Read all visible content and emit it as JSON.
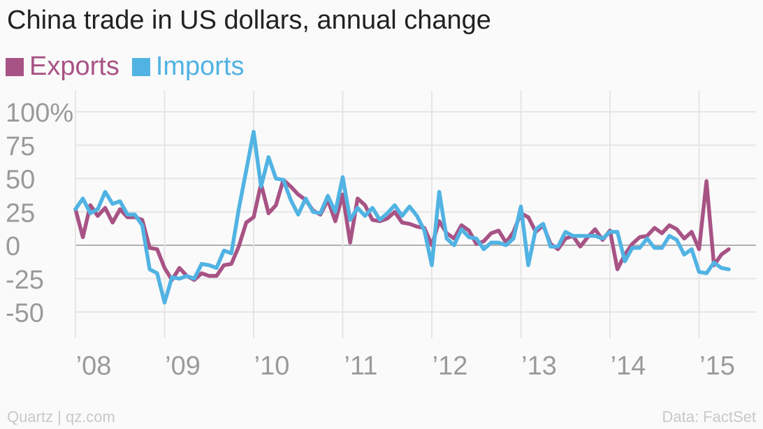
{
  "title": "China trade in US dollars, annual change",
  "footer": {
    "left": "Quartz | qz.com",
    "right": "Data: FactSet"
  },
  "colors": {
    "exports": "#a85385",
    "imports": "#51b3e3",
    "grid": "#e5e5e5",
    "zero": "#999999",
    "tick": "#9a9a9a"
  },
  "chart_data": {
    "type": "line",
    "title": "China trade in US dollars, annual change",
    "xlabel": "",
    "ylabel": "",
    "x_range": [
      2008.0,
      2015.5
    ],
    "ylim": [
      -70,
      105
    ],
    "y_ticks": [
      100,
      75,
      50,
      25,
      0,
      -25,
      -50
    ],
    "y_tick_labels": [
      "100%",
      "75",
      "50",
      "25",
      "0",
      "-25",
      "-50"
    ],
    "x_ticks": [
      2008,
      2009,
      2010,
      2011,
      2012,
      2013,
      2014,
      2015
    ],
    "x_tick_labels": [
      "’08",
      "’09",
      "’10",
      "’11",
      "’12",
      "’13",
      "’14",
      "’15"
    ],
    "grid": true,
    "legend": "top-left",
    "series": [
      {
        "name": "Exports",
        "start": "2008-01",
        "frequency": "monthly",
        "values": [
          27,
          6,
          30,
          22,
          28,
          17,
          27,
          21,
          21,
          19,
          -2,
          -3,
          -17,
          -26,
          -17,
          -23,
          -26,
          -21,
          -23,
          -23,
          -15,
          -14,
          -1,
          17,
          21,
          46,
          24,
          30,
          49,
          44,
          38,
          34,
          26,
          23,
          34,
          18,
          38,
          2,
          35,
          30,
          19,
          18,
          20,
          25,
          17,
          16,
          14,
          13,
          0,
          18,
          9,
          5,
          15,
          11,
          1,
          3,
          9,
          11,
          2,
          10,
          24,
          21,
          10,
          15,
          1,
          -3,
          5,
          7,
          -1,
          6,
          12,
          4,
          11,
          -18,
          -7,
          1,
          6,
          7,
          13,
          9,
          15,
          12,
          5,
          10,
          -3,
          48,
          -15,
          -7,
          -3
        ],
        "values_note_omitted": false
      },
      {
        "name": "Imports",
        "start": "2008-01",
        "frequency": "monthly",
        "values": [
          27,
          35,
          24,
          27,
          40,
          31,
          33,
          23,
          23,
          15,
          -18,
          -21,
          -43,
          -24,
          -25,
          -23,
          -25,
          -14,
          -15,
          -17,
          -4,
          -6,
          27,
          56,
          85,
          44,
          66,
          50,
          49,
          34,
          23,
          35,
          25,
          24,
          37,
          25,
          51,
          19,
          28,
          22,
          28,
          19,
          24,
          30,
          22,
          29,
          22,
          11,
          -15,
          40,
          5,
          0,
          12,
          6,
          5,
          -3,
          2,
          2,
          0,
          5,
          29,
          -15,
          12,
          16,
          -1,
          -1,
          10,
          7,
          7,
          7,
          7,
          5,
          10,
          10,
          -12,
          -2,
          -2,
          5,
          -2,
          -2,
          7,
          4,
          -7,
          -3,
          -20,
          -21,
          -13,
          -17,
          -18
        ]
      }
    ]
  }
}
